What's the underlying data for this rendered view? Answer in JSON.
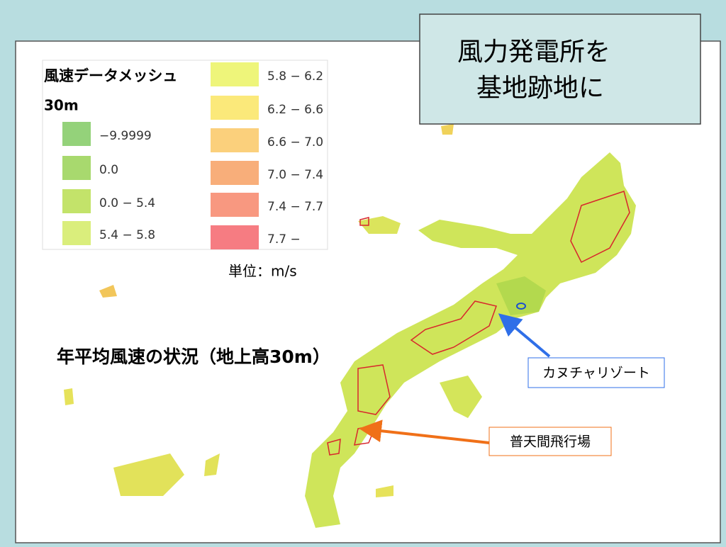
{
  "title_box": {
    "lines": [
      "風力発電所を",
      "基地跡地に"
    ]
  },
  "legend": {
    "title": "風速データメッシュ",
    "subtitle": "30m",
    "items": [
      {
        "label": "−9.9999",
        "color": "#94d27a"
      },
      {
        "label": "0.0",
        "color": "#a8d96e"
      },
      {
        "label": "0.0 − 5.4",
        "color": "#c3e36a"
      },
      {
        "label": "5.4 − 5.8",
        "color": "#daee7c"
      },
      {
        "label": "5.8 − 6.2",
        "color": "#eef57a"
      },
      {
        "label": "6.2 − 6.6",
        "color": "#fbe97a"
      },
      {
        "label": "6.6 − 7.0",
        "color": "#fbd07c"
      },
      {
        "label": "7.0 − 7.4",
        "color": "#f8ae7a"
      },
      {
        "label": "7.4 − 7.7",
        "color": "#f89880"
      },
      {
        "label": "7.7 −",
        "color": "#f67c82"
      }
    ],
    "unit": "単位：m/s"
  },
  "map_caption": "年平均風速の状況（地上高30m）",
  "callouts": [
    "カヌチャリゾート",
    "普天間飛行場"
  ]
}
